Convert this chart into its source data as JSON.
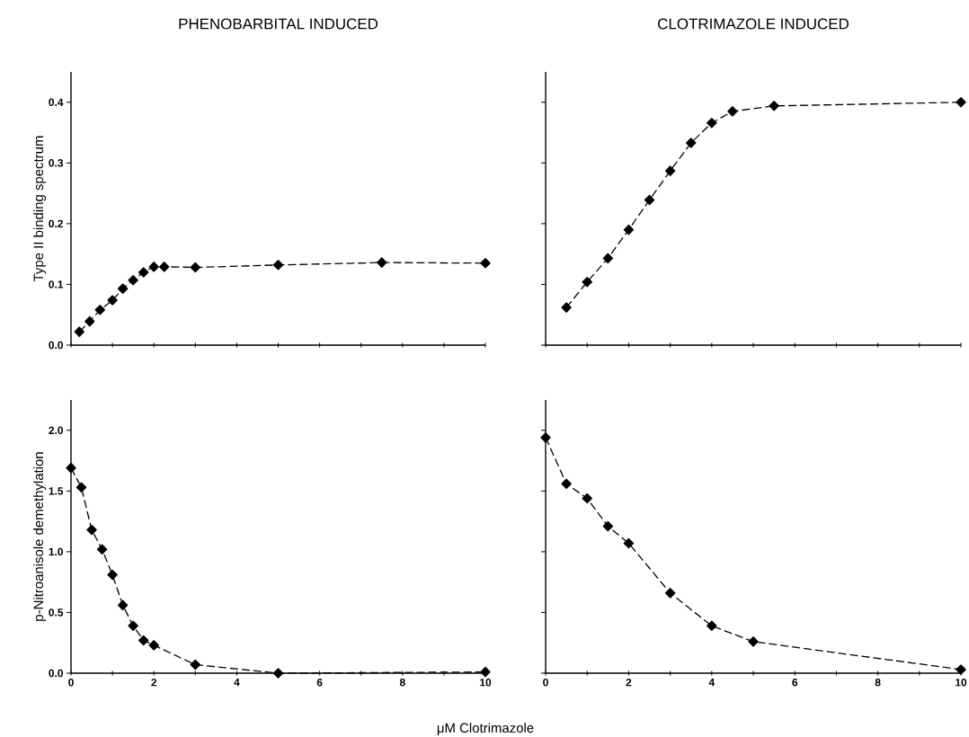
{
  "chart_data": [
    {
      "type": "line",
      "title": "PHENOBARBITAL   INDUCED",
      "ylabel": "Type II binding spectrum",
      "marker": "diamond",
      "line_style": "dashed",
      "tick_labels": "y",
      "x": [
        0.2,
        0.45,
        0.7,
        1.0,
        1.25,
        1.5,
        1.75,
        2.0,
        2.25,
        3,
        5,
        7.5,
        10
      ],
      "series": [
        {
          "color": "#000000",
          "values": [
            0.022,
            0.039,
            0.058,
            0.074,
            0.093,
            0.107,
            0.12,
            0.129,
            0.129,
            0.128,
            0.132,
            0.136,
            0.135
          ]
        }
      ],
      "xlim": [
        0,
        10
      ],
      "xticks": [
        0,
        {
          "value": 1,
          "label": null
        },
        2,
        {
          "value": 3,
          "label": null
        },
        4,
        {
          "value": 5,
          "label": null
        },
        6,
        {
          "value": 7,
          "label": null
        },
        8,
        {
          "value": 9,
          "label": null
        },
        10
      ],
      "ylim": [
        0,
        0.45
      ],
      "yticks": [
        {
          "value": 0,
          "label": "0.0"
        },
        {
          "value": 0.1,
          "label": "0.1"
        },
        {
          "value": 0.2,
          "label": "0.2"
        },
        {
          "value": 0.3,
          "label": "0.3"
        },
        {
          "value": 0.4,
          "label": "0.4"
        }
      ]
    },
    {
      "type": "line",
      "title": "CLOTRIMAZOLE   INDUCED",
      "marker": "diamond",
      "line_style": "dashed",
      "tick_labels": false,
      "x": [
        0.5,
        1,
        1.5,
        2,
        2.5,
        3,
        3.5,
        4,
        4.5,
        5.5,
        10
      ],
      "series": [
        {
          "color": "#000000",
          "values": [
            0.062,
            0.104,
            0.143,
            0.19,
            0.239,
            0.287,
            0.333,
            0.366,
            0.385,
            0.394,
            0.4
          ]
        }
      ],
      "xlim": [
        0,
        10
      ],
      "xticks": [
        0,
        {
          "value": 1,
          "label": null
        },
        2,
        {
          "value": 3,
          "label": null
        },
        4,
        {
          "value": 5,
          "label": null
        },
        6,
        {
          "value": 7,
          "label": null
        },
        8,
        {
          "value": 9,
          "label": null
        },
        10
      ],
      "ylim": [
        0,
        0.45
      ],
      "yticks": [
        0,
        0.1,
        0.2,
        0.3,
        0.4
      ]
    },
    {
      "type": "line",
      "ylabel": "p-Nitroanisole demethylation",
      "xlabel": "μM Clotrimazole",
      "marker": "diamond",
      "line_style": "dashed",
      "x": [
        0,
        0.25,
        0.5,
        0.75,
        1,
        1.25,
        1.5,
        1.75,
        2,
        3,
        5,
        10
      ],
      "series": [
        {
          "color": "#000000",
          "values": [
            1.69,
            1.53,
            1.18,
            1.02,
            0.81,
            0.56,
            0.39,
            0.27,
            0.23,
            0.07,
            0.0,
            0.01
          ]
        }
      ],
      "xlim": [
        0,
        10
      ],
      "xticks": [
        0,
        {
          "value": 1,
          "label": null
        },
        2,
        {
          "value": 3,
          "label": null
        },
        4,
        {
          "value": 5,
          "label": null
        },
        6,
        {
          "value": 7,
          "label": null
        },
        8,
        {
          "value": 9,
          "label": null
        },
        10
      ],
      "ylim": [
        0,
        2.25
      ],
      "yticks": [
        {
          "value": 0,
          "label": "0.0"
        },
        {
          "value": 0.5,
          "label": "0.5"
        },
        {
          "value": 1,
          "label": "1.0"
        },
        {
          "value": 1.5,
          "label": "1.5"
        },
        {
          "value": 2,
          "label": "2.0"
        }
      ]
    },
    {
      "type": "line",
      "marker": "diamond",
      "line_style": "dashed",
      "tick_labels": "x",
      "x": [
        0,
        0.5,
        1,
        1.5,
        2,
        3,
        4,
        5,
        10
      ],
      "series": [
        {
          "color": "#000000",
          "values": [
            1.94,
            1.56,
            1.44,
            1.21,
            1.07,
            0.66,
            0.39,
            0.26,
            0.03
          ]
        }
      ],
      "xlim": [
        0,
        10
      ],
      "xticks": [
        0,
        {
          "value": 1,
          "label": null
        },
        2,
        {
          "value": 3,
          "label": null
        },
        4,
        {
          "value": 5,
          "label": null
        },
        6,
        {
          "value": 7,
          "label": null
        },
        8,
        {
          "value": 9,
          "label": null
        },
        10
      ],
      "ylim": [
        0,
        2.25
      ],
      "yticks": [
        0,
        0.5,
        1,
        1.5,
        2
      ]
    }
  ]
}
